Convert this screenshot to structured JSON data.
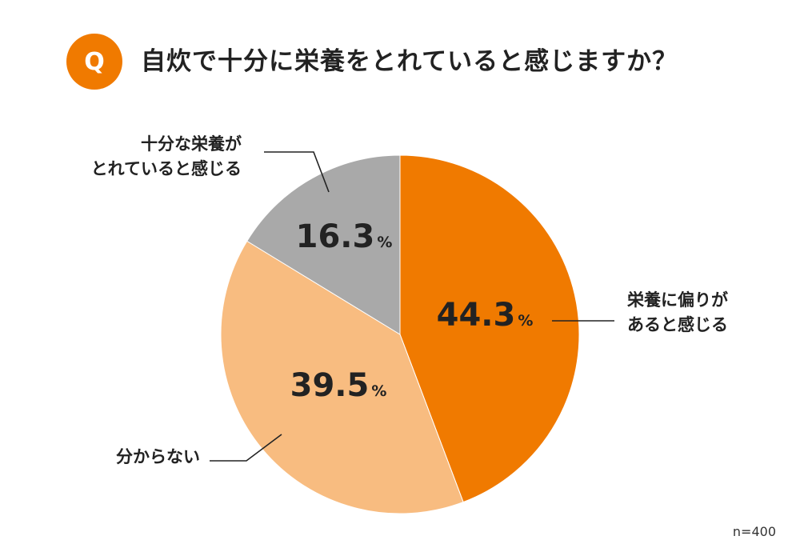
{
  "question": {
    "badge": "Q",
    "text": "自炊で十分に栄養をとれていると感じますか？"
  },
  "chart_data": {
    "type": "pie",
    "unit": "%",
    "slices": [
      {
        "label_lines": [
          "栄養に偏りが",
          "あると感じる"
        ],
        "value": 44.3,
        "display": "44.3",
        "color": "#f07a00"
      },
      {
        "label_lines": [
          "分からない"
        ],
        "value": 39.5,
        "display": "39.5",
        "color": "#f8bc80"
      },
      {
        "label_lines": [
          "十分な栄養が",
          "とれていると感じる"
        ],
        "value": 16.3,
        "display": "16.3",
        "color": "#a9a9a9"
      }
    ]
  },
  "sample_size": "n=400"
}
